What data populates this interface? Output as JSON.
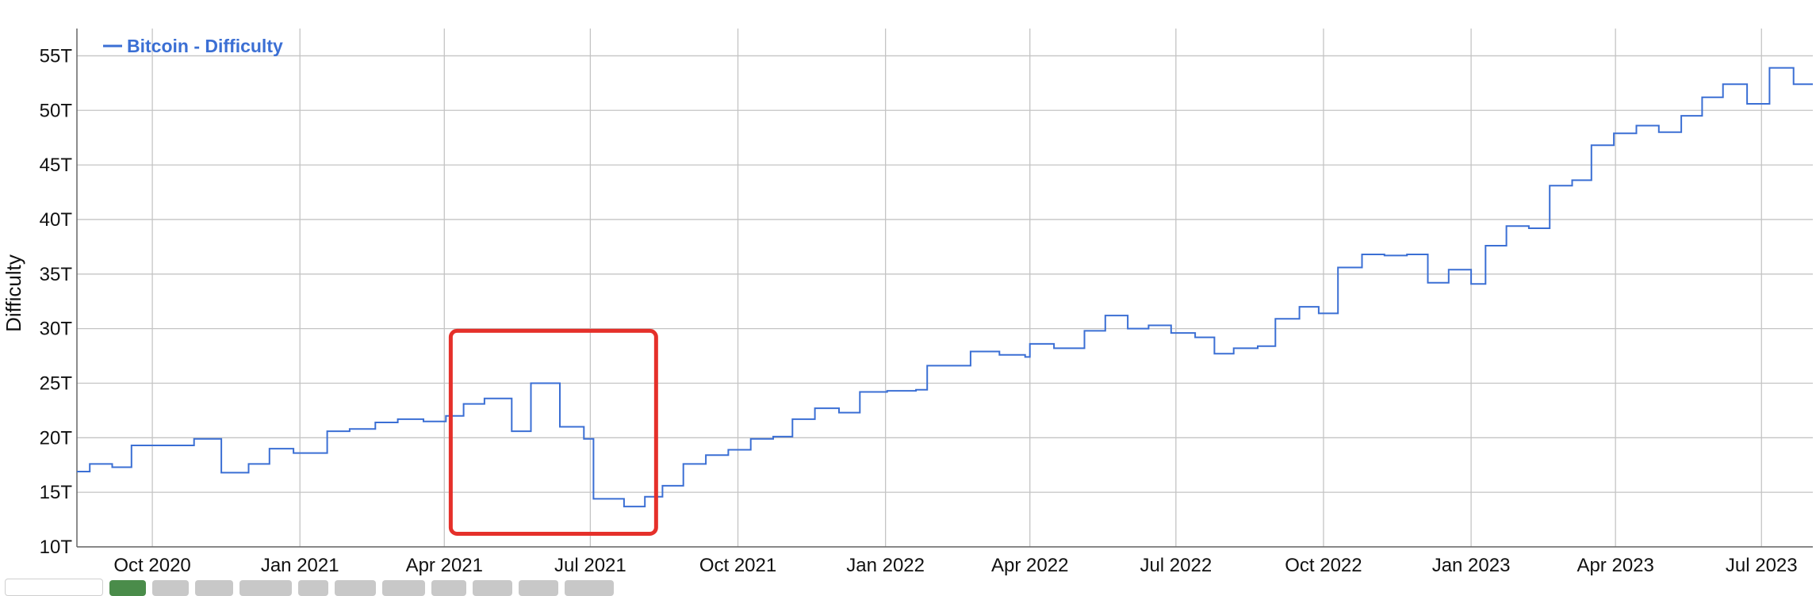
{
  "chart_data": {
    "type": "line",
    "title": "",
    "xlabel": "",
    "ylabel": "Difficulty",
    "legend": {
      "position": "top-left"
    },
    "grid": true,
    "series": [
      {
        "name": "Bitcoin - Difficulty",
        "color": "#3b6fd4",
        "points": [
          [
            "2020-08-15",
            16.9
          ],
          [
            "2020-08-23",
            17.6
          ],
          [
            "2020-09-06",
            17.3
          ],
          [
            "2020-09-18",
            19.3
          ],
          [
            "2020-10-27",
            19.9
          ],
          [
            "2020-11-13",
            16.8
          ],
          [
            "2020-11-30",
            17.6
          ],
          [
            "2020-12-13",
            19.0
          ],
          [
            "2020-12-28",
            18.6
          ],
          [
            "2021-01-11",
            18.6
          ],
          [
            "2021-01-18",
            20.6
          ],
          [
            "2021-02-01",
            20.8
          ],
          [
            "2021-02-17",
            21.4
          ],
          [
            "2021-03-03",
            21.7
          ],
          [
            "2021-03-19",
            21.5
          ],
          [
            "2021-04-02",
            22.0
          ],
          [
            "2021-04-13",
            23.1
          ],
          [
            "2021-04-26",
            23.6
          ],
          [
            "2021-05-13",
            20.6
          ],
          [
            "2021-05-25",
            25.0
          ],
          [
            "2021-06-12",
            21.0
          ],
          [
            "2021-06-27",
            19.9
          ],
          [
            "2021-07-03",
            14.4
          ],
          [
            "2021-07-22",
            13.7
          ],
          [
            "2021-08-04",
            14.6
          ],
          [
            "2021-08-15",
            15.6
          ],
          [
            "2021-08-28",
            17.6
          ],
          [
            "2021-09-11",
            18.4
          ],
          [
            "2021-09-25",
            18.9
          ],
          [
            "2021-10-09",
            19.9
          ],
          [
            "2021-10-23",
            20.1
          ],
          [
            "2021-11-04",
            21.7
          ],
          [
            "2021-11-18",
            22.7
          ],
          [
            "2021-12-03",
            22.3
          ],
          [
            "2021-12-16",
            24.2
          ],
          [
            "2022-01-02",
            24.3
          ],
          [
            "2022-01-20",
            24.4
          ],
          [
            "2022-01-27",
            26.6
          ],
          [
            "2022-02-23",
            27.9
          ],
          [
            "2022-03-13",
            27.6
          ],
          [
            "2022-03-29",
            27.4
          ],
          [
            "2022-04-01",
            28.6
          ],
          [
            "2022-04-16",
            28.2
          ],
          [
            "2022-05-05",
            29.8
          ],
          [
            "2022-05-18",
            31.2
          ],
          [
            "2022-06-01",
            30.0
          ],
          [
            "2022-06-14",
            30.3
          ],
          [
            "2022-06-28",
            29.6
          ],
          [
            "2022-07-13",
            29.2
          ],
          [
            "2022-07-25",
            27.7
          ],
          [
            "2022-08-06",
            28.2
          ],
          [
            "2022-08-21",
            28.4
          ],
          [
            "2022-09-01",
            30.9
          ],
          [
            "2022-09-16",
            32.0
          ],
          [
            "2022-09-28",
            31.4
          ],
          [
            "2022-10-10",
            35.6
          ],
          [
            "2022-10-25",
            36.8
          ],
          [
            "2022-11-08",
            36.7
          ],
          [
            "2022-11-22",
            36.8
          ],
          [
            "2022-12-05",
            34.2
          ],
          [
            "2022-12-18",
            35.4
          ],
          [
            "2023-01-01",
            34.1
          ],
          [
            "2023-01-10",
            37.6
          ],
          [
            "2023-01-23",
            39.4
          ],
          [
            "2023-02-06",
            39.2
          ],
          [
            "2023-02-19",
            43.1
          ],
          [
            "2023-03-05",
            43.6
          ],
          [
            "2023-03-17",
            46.8
          ],
          [
            "2023-03-31",
            47.9
          ],
          [
            "2023-04-14",
            48.6
          ],
          [
            "2023-04-28",
            48.0
          ],
          [
            "2023-05-12",
            49.5
          ],
          [
            "2023-05-25",
            51.2
          ],
          [
            "2023-06-07",
            52.4
          ],
          [
            "2023-06-22",
            50.6
          ],
          [
            "2023-07-06",
            53.9
          ],
          [
            "2023-07-21",
            52.4
          ],
          [
            "2023-08-02",
            52.4
          ]
        ]
      }
    ],
    "x_axis": {
      "type": "date",
      "min": "2020-08-15",
      "max": "2023-08-02",
      "ticks": [
        {
          "date": "2020-10-01",
          "label": "Oct 2020"
        },
        {
          "date": "2021-01-01",
          "label": "Jan 2021"
        },
        {
          "date": "2021-04-01",
          "label": "Apr 2021"
        },
        {
          "date": "2021-07-01",
          "label": "Jul 2021"
        },
        {
          "date": "2021-10-01",
          "label": "Oct 2021"
        },
        {
          "date": "2022-01-01",
          "label": "Jan 2022"
        },
        {
          "date": "2022-04-01",
          "label": "Apr 2022"
        },
        {
          "date": "2022-07-01",
          "label": "Jul 2022"
        },
        {
          "date": "2022-10-01",
          "label": "Oct 2022"
        },
        {
          "date": "2023-01-01",
          "label": "Jan 2023"
        },
        {
          "date": "2023-04-01",
          "label": "Apr 2023"
        },
        {
          "date": "2023-07-01",
          "label": "Jul 2023"
        }
      ]
    },
    "y_axis": {
      "unit": "T",
      "ylim": [
        10,
        57.5
      ],
      "ticks": [
        {
          "value": 10,
          "label": "10T"
        },
        {
          "value": 15,
          "label": "15T"
        },
        {
          "value": 20,
          "label": "20T"
        },
        {
          "value": 25,
          "label": "25T"
        },
        {
          "value": 30,
          "label": "30T"
        },
        {
          "value": 35,
          "label": "35T"
        },
        {
          "value": 40,
          "label": "40T"
        },
        {
          "value": 45,
          "label": "45T"
        },
        {
          "value": 50,
          "label": "50T"
        },
        {
          "value": 55,
          "label": "55T"
        }
      ]
    },
    "annotations": [
      {
        "type": "highlight-box",
        "color": "#e5302a",
        "x_from": "2021-04-05",
        "x_to": "2021-08-11",
        "y_from": 11.2,
        "y_to": 29.8
      }
    ]
  },
  "range_selector": {
    "active_color": "#4a8c4a",
    "inactive_color": "#c8c8c8"
  }
}
